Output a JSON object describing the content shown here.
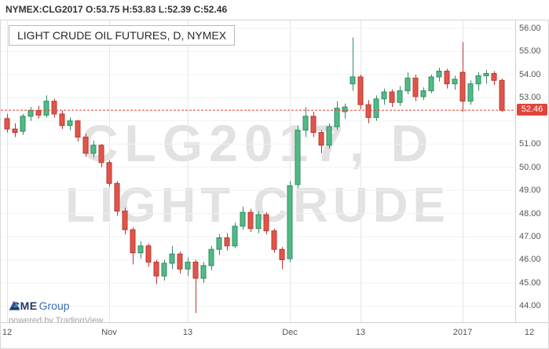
{
  "header": {
    "symbol_info": "NYMEX:CLG2017 O:53.75 H:53.83 L:52.39 C:52.46"
  },
  "legend": {
    "title": "LIGHT CRUDE OIL FUTURES, D, NYMEX"
  },
  "watermark": {
    "line1": "CLG2017, D",
    "line2": "LIGHT CRUDE"
  },
  "branding": {
    "cme": "CME",
    "group": "Group",
    "powered_by": "powered by TradingView"
  },
  "chart_data": {
    "type": "candlestick",
    "symbol": "NYMEX:CLG2017",
    "interval": "D",
    "last": {
      "value": 52.46,
      "label": "52.46"
    },
    "price_range": [
      43.3,
      56.34
    ],
    "price_ticks": [
      {
        "v": 56,
        "label": "56.00"
      },
      {
        "v": 55,
        "label": "55.00"
      },
      {
        "v": 54,
        "label": "54.00"
      },
      {
        "v": 53,
        "label": "53.00"
      },
      {
        "v": 52,
        "label": ""
      },
      {
        "v": 51,
        "label": "51.00"
      },
      {
        "v": 50,
        "label": "50.00"
      },
      {
        "v": 49,
        "label": "49.00"
      },
      {
        "v": 48,
        "label": "48.00"
      },
      {
        "v": 47,
        "label": "47.00"
      },
      {
        "v": 46,
        "label": "46.00"
      },
      {
        "v": 45,
        "label": "45.00"
      },
      {
        "v": 44,
        "label": "44.00"
      }
    ],
    "time_ticks": [
      {
        "i": 0,
        "label": "12"
      },
      {
        "i": 13,
        "label": "Nov"
      },
      {
        "i": 23,
        "label": "13"
      },
      {
        "i": 36,
        "label": "Dec"
      },
      {
        "i": 45,
        "label": "13"
      },
      {
        "i": 58,
        "label": "2017"
      },
      {
        "i": 66.5,
        "label": "12"
      }
    ],
    "colors": {
      "up": "#53b987",
      "up_border": "#2f8e63",
      "down": "#e2544a",
      "down_border": "#b83a31",
      "last_line": "#e0453a",
      "grid_v": "#e7e7e7",
      "grid_h": "#f2f2f2"
    },
    "candles": [
      [
        52.1,
        52.3,
        51.5,
        51.65
      ],
      [
        51.65,
        51.9,
        51.3,
        51.5
      ],
      [
        51.55,
        52.3,
        51.4,
        52.2
      ],
      [
        52.2,
        52.6,
        52.0,
        52.45
      ],
      [
        52.45,
        52.65,
        52.1,
        52.25
      ],
      [
        52.25,
        53.1,
        52.15,
        52.85
      ],
      [
        52.85,
        52.95,
        52.15,
        52.3
      ],
      [
        52.3,
        52.45,
        51.65,
        51.8
      ],
      [
        51.8,
        52.15,
        51.6,
        52.0
      ],
      [
        52.0,
        52.05,
        51.1,
        51.3
      ],
      [
        51.3,
        51.45,
        50.45,
        50.6
      ],
      [
        50.6,
        51.15,
        50.4,
        50.95
      ],
      [
        50.95,
        51.0,
        50.0,
        50.2
      ],
      [
        50.2,
        50.3,
        49.15,
        49.3
      ],
      [
        49.3,
        49.4,
        47.9,
        48.1
      ],
      [
        48.1,
        48.25,
        47.1,
        47.3
      ],
      [
        47.3,
        47.4,
        45.8,
        46.3
      ],
      [
        46.3,
        46.8,
        46.05,
        46.6
      ],
      [
        46.6,
        46.7,
        45.7,
        45.9
      ],
      [
        45.9,
        46.0,
        44.95,
        45.3
      ],
      [
        45.3,
        46.0,
        45.1,
        45.85
      ],
      [
        45.85,
        46.6,
        45.6,
        46.25
      ],
      [
        46.25,
        46.35,
        45.4,
        45.6
      ],
      [
        45.6,
        46.1,
        45.3,
        45.9
      ],
      [
        45.9,
        46.0,
        43.7,
        45.2
      ],
      [
        45.2,
        45.9,
        45.0,
        45.75
      ],
      [
        45.75,
        46.6,
        45.55,
        46.45
      ],
      [
        46.45,
        47.1,
        46.2,
        46.95
      ],
      [
        46.95,
        47.15,
        46.4,
        46.6
      ],
      [
        46.6,
        47.6,
        46.5,
        47.45
      ],
      [
        47.45,
        48.3,
        47.3,
        48.05
      ],
      [
        48.05,
        48.2,
        47.2,
        47.35
      ],
      [
        47.35,
        48.1,
        47.15,
        47.95
      ],
      [
        47.95,
        48.05,
        47.1,
        47.25
      ],
      [
        47.25,
        47.35,
        46.3,
        46.45
      ],
      [
        46.45,
        46.55,
        45.6,
        46.0
      ],
      [
        46.05,
        49.4,
        45.9,
        49.2
      ],
      [
        49.25,
        51.8,
        49.1,
        51.6
      ],
      [
        51.6,
        52.6,
        51.3,
        52.2
      ],
      [
        52.2,
        52.4,
        51.3,
        51.5
      ],
      [
        51.5,
        51.6,
        50.6,
        50.95
      ],
      [
        50.95,
        51.9,
        50.8,
        51.75
      ],
      [
        51.75,
        52.85,
        51.6,
        52.55
      ],
      [
        52.4,
        52.75,
        52.1,
        52.6
      ],
      [
        53.6,
        55.6,
        53.3,
        53.9
      ],
      [
        53.9,
        54.0,
        52.5,
        52.7
      ],
      [
        52.7,
        52.9,
        51.9,
        52.15
      ],
      [
        52.15,
        53.1,
        52.0,
        52.95
      ],
      [
        52.95,
        53.4,
        52.7,
        53.25
      ],
      [
        53.25,
        53.35,
        52.6,
        52.8
      ],
      [
        52.8,
        53.5,
        52.65,
        53.3
      ],
      [
        53.3,
        54.1,
        53.15,
        53.85
      ],
      [
        53.85,
        54.0,
        52.85,
        53.05
      ],
      [
        53.05,
        53.45,
        52.9,
        53.3
      ],
      [
        53.3,
        54.0,
        53.2,
        53.9
      ],
      [
        53.9,
        54.3,
        53.7,
        54.15
      ],
      [
        54.15,
        54.25,
        53.4,
        53.6
      ],
      [
        53.6,
        53.95,
        53.35,
        53.8
      ],
      [
        54.1,
        55.4,
        52.4,
        52.85
      ],
      [
        52.85,
        53.75,
        52.7,
        53.6
      ],
      [
        53.6,
        54.1,
        53.3,
        53.95
      ],
      [
        53.95,
        54.2,
        53.6,
        54.05
      ],
      [
        54.05,
        54.15,
        53.55,
        53.75
      ],
      [
        53.75,
        53.83,
        52.39,
        52.46
      ]
    ]
  }
}
